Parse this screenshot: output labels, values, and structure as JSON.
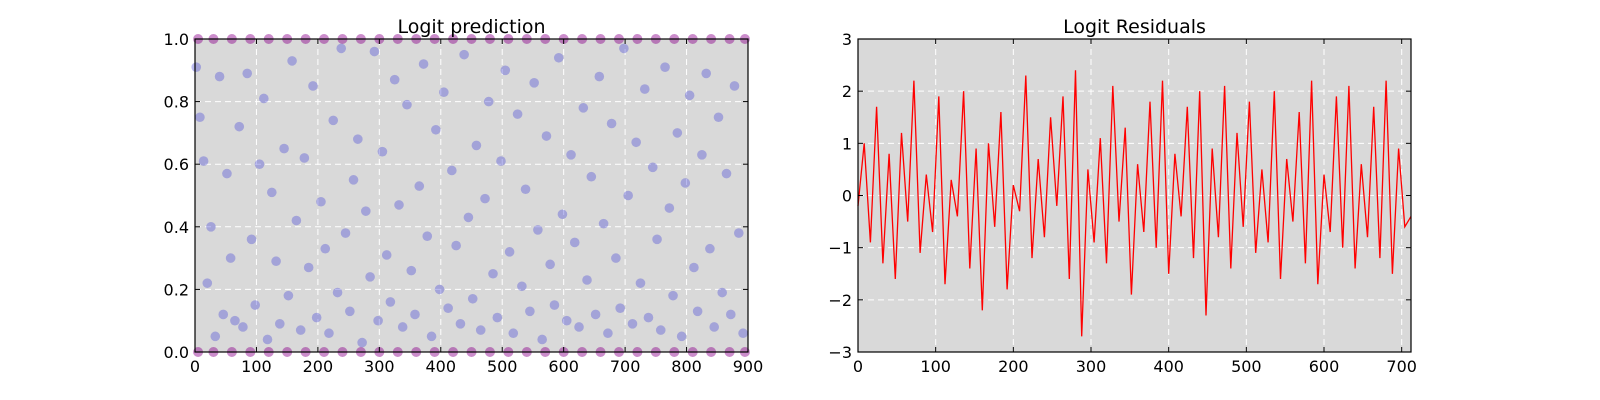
{
  "chart_data": [
    {
      "type": "scatter",
      "title": "Logit prediction",
      "xlabel": "",
      "ylabel": "",
      "xlim": [
        0,
        900
      ],
      "ylim": [
        0.0,
        1.0
      ],
      "xticks": [
        "0",
        "100",
        "200",
        "300",
        "400",
        "500",
        "600",
        "700",
        "800",
        "900"
      ],
      "yticks": [
        "0.0",
        "0.2",
        "0.4",
        "0.6",
        "0.8",
        "1.0"
      ],
      "grid": true,
      "background": "#d9d9d9",
      "colors": {
        "predictions": "#4040d8",
        "observed": "#8b008b"
      },
      "series": [
        {
          "values_note_free": true,
          "x": [
            2,
            8,
            14,
            20,
            26,
            33,
            40,
            46,
            52,
            58,
            65,
            72,
            78,
            85,
            92,
            98,
            105,
            112,
            118,
            125,
            132,
            138,
            145,
            152,
            158,
            165,
            172,
            178,
            185,
            192,
            198,
            205,
            212,
            218,
            225,
            232,
            238,
            245,
            252,
            258,
            265,
            272,
            278,
            285,
            292,
            298,
            305,
            312,
            318,
            325,
            332,
            338,
            345,
            352,
            358,
            365,
            372,
            378,
            385,
            392,
            398,
            405,
            412,
            418,
            425,
            432,
            438,
            445,
            452,
            458,
            465,
            472,
            478,
            485,
            492,
            498,
            505,
            512,
            518,
            525,
            532,
            538,
            545,
            552,
            558,
            565,
            572,
            578,
            585,
            592,
            598,
            605,
            612,
            618,
            625,
            632,
            638,
            645,
            652,
            658,
            665,
            672,
            678,
            685,
            692,
            698,
            705,
            712,
            718,
            725,
            732,
            738,
            745,
            752,
            758,
            765,
            772,
            778,
            785,
            792,
            798,
            805,
            812,
            818,
            825,
            832,
            838,
            845,
            852,
            858,
            865,
            872,
            878,
            885,
            892
          ],
          "y": [
            0.91,
            0.75,
            0.61,
            0.22,
            0.4,
            0.05,
            0.88,
            0.12,
            0.57,
            0.3,
            0.1,
            0.72,
            0.08,
            0.89,
            0.36,
            0.15,
            0.6,
            0.81,
            0.04,
            0.51,
            0.29,
            0.09,
            0.65,
            0.18,
            0.93,
            0.42,
            0.07,
            0.62,
            0.27,
            0.85,
            0.11,
            0.48,
            0.33,
            0.06,
            0.74,
            0.19,
            0.97,
            0.38,
            0.13,
            0.55,
            0.68,
            0.03,
            0.45,
            0.24,
            0.96,
            0.1,
            0.64,
            0.31,
            0.16,
            0.87,
            0.47,
            0.08,
            0.79,
            0.26,
            0.12,
            0.53,
            0.92,
            0.37,
            0.05,
            0.71,
            0.2,
            0.83,
            0.14,
            0.58,
            0.34,
            0.09,
            0.95,
            0.43,
            0.17,
            0.66,
            0.07,
            0.49,
            0.8,
            0.25,
            0.11,
            0.61,
            0.9,
            0.32,
            0.06,
            0.76,
            0.21,
            0.52,
            0.13,
            0.86,
            0.39,
            0.04,
            0.69,
            0.28,
            0.15,
            0.94,
            0.44,
            0.1,
            0.63,
            0.35,
            0.08,
            0.78,
            0.23,
            0.56,
            0.12,
            0.88,
            0.41,
            0.06,
            0.73,
            0.3,
            0.14,
            0.97,
            0.5,
            0.09,
            0.67,
            0.22,
            0.84,
            0.11,
            0.59,
            0.36,
            0.07,
            0.91,
            0.46,
            0.18,
            0.7,
            0.05,
            0.54,
            0.82,
            0.27,
            0.13,
            0.63,
            0.89,
            0.33,
            0.08,
            0.75,
            0.19,
            0.57,
            0.12,
            0.85,
            0.38,
            0.06
          ]
        }
      ],
      "observed": {
        "x": [
          5,
          30,
          60,
          90,
          120,
          150,
          180,
          210,
          240,
          270,
          300,
          330,
          360,
          390,
          420,
          450,
          480,
          510,
          540,
          570,
          600,
          630,
          660,
          690,
          720,
          750,
          780,
          810,
          840,
          870,
          895
        ],
        "y_top": 1.0,
        "y_bottom": 0.0
      }
    },
    {
      "type": "line",
      "title": "Logit Residuals",
      "xlabel": "",
      "ylabel": "",
      "xlim": [
        0,
        712
      ],
      "ylim": [
        -3,
        3
      ],
      "xticks": [
        "0",
        "100",
        "200",
        "300",
        "400",
        "500",
        "600",
        "700"
      ],
      "yticks": [
        "−3",
        "−2",
        "−1",
        "0",
        "1",
        "2",
        "3"
      ],
      "grid": true,
      "background": "#d9d9d9",
      "colors": {
        "line": "#ff0000"
      },
      "series": [
        {
          "x": [
            0,
            8,
            16,
            24,
            32,
            40,
            48,
            56,
            64,
            72,
            80,
            88,
            96,
            104,
            112,
            120,
            128,
            136,
            144,
            152,
            160,
            168,
            176,
            184,
            192,
            200,
            208,
            216,
            224,
            232,
            240,
            248,
            256,
            264,
            272,
            280,
            288,
            296,
            304,
            312,
            320,
            328,
            336,
            344,
            352,
            360,
            368,
            376,
            384,
            392,
            400,
            408,
            416,
            424,
            432,
            440,
            448,
            456,
            464,
            472,
            480,
            488,
            496,
            504,
            512,
            520,
            528,
            536,
            544,
            552,
            560,
            568,
            576,
            584,
            592,
            600,
            608,
            616,
            624,
            632,
            640,
            648,
            656,
            664,
            672,
            680,
            688,
            696,
            704,
            712
          ],
          "y": [
            -0.2,
            1.0,
            -0.9,
            1.7,
            -1.3,
            0.8,
            -1.6,
            1.2,
            -0.5,
            2.2,
            -1.1,
            0.4,
            -0.7,
            1.9,
            -1.7,
            0.3,
            -0.4,
            2.0,
            -1.4,
            0.9,
            -2.2,
            1.0,
            -0.6,
            1.6,
            -1.8,
            0.2,
            -0.3,
            2.3,
            -1.2,
            0.7,
            -0.8,
            1.5,
            -0.2,
            1.9,
            -1.6,
            2.4,
            -2.7,
            0.5,
            -0.9,
            1.1,
            -1.3,
            2.1,
            -0.5,
            1.3,
            -1.9,
            0.6,
            -0.7,
            1.8,
            -1.0,
            2.2,
            -1.5,
            0.8,
            -0.4,
            1.7,
            -1.2,
            2.0,
            -2.3,
            0.9,
            -0.8,
            2.1,
            -1.4,
            1.2,
            -0.6,
            1.8,
            -1.1,
            0.5,
            -0.9,
            2.0,
            -1.6,
            0.7,
            -0.5,
            1.6,
            -1.3,
            2.2,
            -1.7,
            0.4,
            -0.7,
            1.9,
            -1.0,
            2.1,
            -1.4,
            0.6,
            -0.8,
            1.7,
            -1.2,
            2.2,
            -1.5,
            0.9,
            -0.6,
            -0.4
          ]
        }
      ]
    }
  ]
}
